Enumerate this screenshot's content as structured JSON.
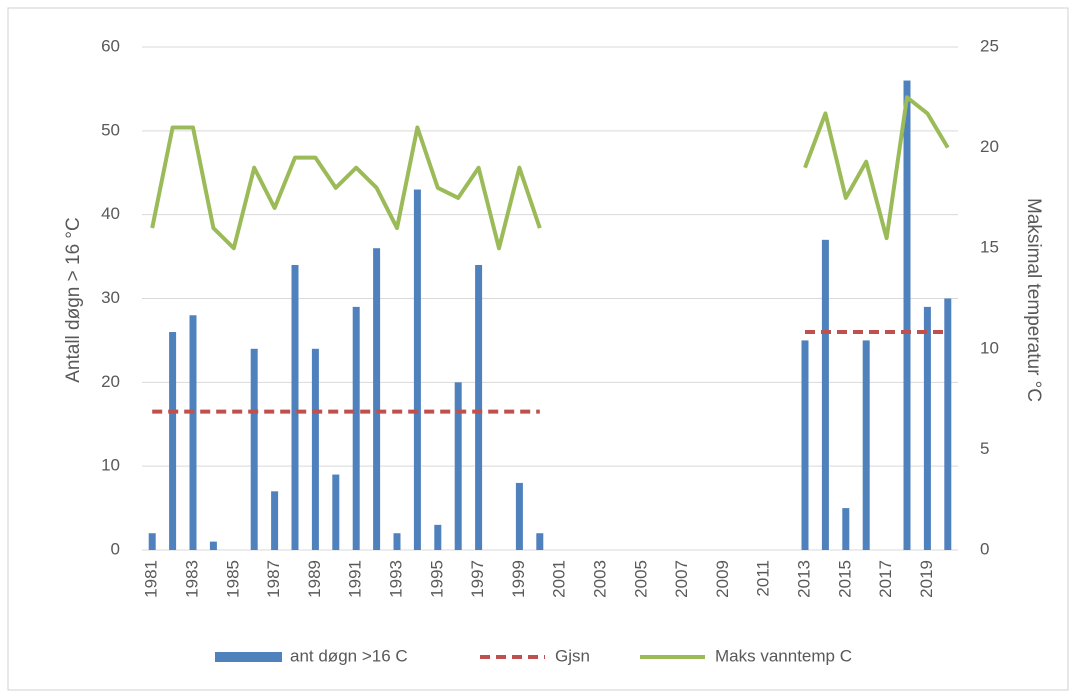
{
  "chart_data": {
    "type": "bar_line",
    "y_label": "Antall døgn > 16 °C",
    "y2_label": "Maksimal temperatur °C",
    "categories": [
      "1981",
      null,
      "1983",
      null,
      "1985",
      null,
      "1987",
      null,
      "1989",
      null,
      "1991",
      null,
      "1993",
      null,
      "1995",
      null,
      "1997",
      null,
      "1999",
      null,
      "2001",
      null,
      "2003",
      null,
      "2005",
      null,
      "2007",
      null,
      "2009",
      null,
      "2011",
      null,
      "2013",
      null,
      "2015",
      null,
      "2017",
      null,
      "2019",
      null
    ],
    "ylim": [
      0,
      60
    ],
    "yticks": [
      0,
      10,
      20,
      30,
      40,
      50,
      60
    ],
    "y2lim": [
      0,
      25
    ],
    "y2ticks": [
      0,
      5,
      10,
      15,
      20,
      25
    ],
    "grid": true,
    "legend": "bottom",
    "series": [
      {
        "name": "ant døgn >16 C",
        "type": "bar",
        "color": "#4f81bd",
        "values": [
          2,
          26,
          28,
          1,
          0,
          24,
          7,
          34,
          24,
          9,
          29,
          36,
          2,
          43,
          3,
          20,
          34,
          0,
          8,
          2,
          null,
          null,
          null,
          null,
          null,
          null,
          null,
          null,
          null,
          null,
          null,
          null,
          25,
          37,
          5,
          25,
          0,
          56,
          29,
          30
        ]
      },
      {
        "name": "Gjsn",
        "type": "dashed-line",
        "color": "#c0504d",
        "values": [
          16.5,
          16.5,
          16.5,
          16.5,
          16.5,
          16.5,
          16.5,
          16.5,
          16.5,
          16.5,
          16.5,
          16.5,
          16.5,
          16.5,
          16.5,
          16.5,
          16.5,
          16.5,
          16.5,
          16.5,
          null,
          null,
          null,
          null,
          null,
          null,
          null,
          null,
          null,
          null,
          null,
          null,
          26,
          26,
          26,
          26,
          26,
          26,
          26,
          26
        ]
      },
      {
        "name": "Maks vanntemp C",
        "type": "line",
        "axis": "y2",
        "color": "#9bbb59",
        "values": [
          16,
          21,
          21,
          16,
          15,
          19,
          17,
          19.5,
          19.5,
          18,
          19,
          18,
          16,
          21,
          18,
          17.5,
          19,
          15,
          19,
          16,
          null,
          null,
          null,
          null,
          null,
          null,
          null,
          null,
          null,
          null,
          null,
          null,
          19,
          21.7,
          17.5,
          19.3,
          15.5,
          22.5,
          21.7,
          20
        ]
      }
    ]
  }
}
